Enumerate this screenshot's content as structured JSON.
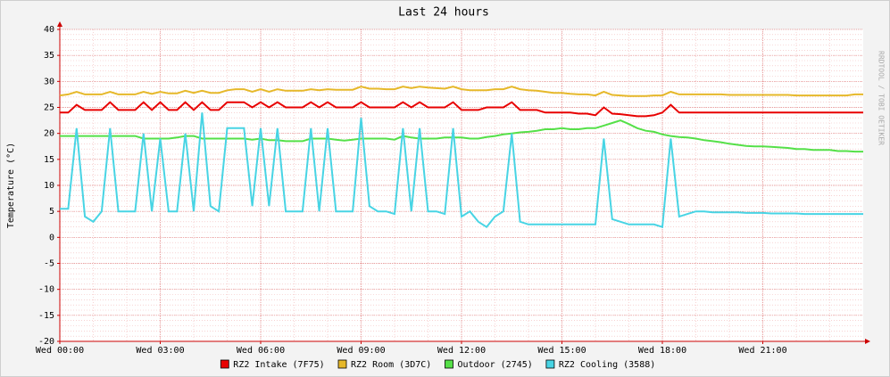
{
  "chart_data": {
    "type": "line",
    "title": "Last 24 hours",
    "ylabel": "Temperature (°C)",
    "watermark": "RRDTOOL / TOBI OETIKER",
    "x": [
      0,
      0.25,
      0.5,
      0.75,
      1,
      1.25,
      1.5,
      1.75,
      2,
      2.25,
      2.5,
      2.75,
      3,
      3.25,
      3.5,
      3.75,
      4,
      4.25,
      4.5,
      4.75,
      5,
      5.25,
      5.5,
      5.75,
      6,
      6.25,
      6.5,
      6.75,
      7,
      7.25,
      7.5,
      7.75,
      8,
      8.25,
      8.5,
      8.75,
      9,
      9.25,
      9.5,
      9.75,
      10,
      10.25,
      10.5,
      10.75,
      11,
      11.25,
      11.5,
      11.75,
      12,
      12.25,
      12.5,
      12.75,
      13,
      13.25,
      13.5,
      13.75,
      14,
      14.25,
      14.5,
      14.75,
      15,
      15.25,
      15.5,
      15.75,
      16,
      16.25,
      16.5,
      16.75,
      17,
      17.25,
      17.5,
      17.75,
      18,
      18.25,
      18.5,
      18.75,
      19,
      19.25,
      19.5,
      19.75,
      20,
      20.25,
      20.5,
      20.75,
      21,
      21.25,
      21.5,
      21.75,
      22,
      22.25,
      22.5,
      22.75,
      23,
      23.25,
      23.5,
      23.75,
      24
    ],
    "series": [
      {
        "name": "RZ2 Intake (7F75)",
        "color": "#e80000",
        "values": [
          24,
          24,
          25.5,
          24.5,
          24.5,
          24.5,
          26,
          24.5,
          24.5,
          24.5,
          26,
          24.5,
          26,
          24.5,
          24.5,
          26,
          24.5,
          26,
          24.5,
          24.5,
          26,
          26,
          26,
          25,
          26,
          25,
          26,
          25,
          25,
          25,
          26,
          25,
          26,
          25,
          25,
          25,
          26,
          25,
          25,
          25,
          25,
          26,
          25,
          26,
          25,
          25,
          25,
          26,
          24.5,
          24.5,
          24.5,
          25,
          25,
          25,
          26,
          24.5,
          24.5,
          24.5,
          24,
          24,
          24,
          24,
          23.8,
          23.8,
          23.5,
          25,
          23.8,
          23.7,
          23.5,
          23.3,
          23.3,
          23.5,
          24,
          25.5,
          24,
          24,
          24,
          24,
          24,
          24,
          24,
          24,
          24,
          24,
          24,
          24,
          24,
          24,
          24,
          24,
          24,
          24,
          24,
          24,
          24,
          24,
          24
        ]
      },
      {
        "name": "RZ2 Room (3D7C)",
        "color": "#e6b82a",
        "values": [
          27.3,
          27.5,
          28,
          27.5,
          27.5,
          27.5,
          28,
          27.5,
          27.5,
          27.5,
          28,
          27.6,
          28,
          27.7,
          27.7,
          28.2,
          27.8,
          28.2,
          27.8,
          27.8,
          28.3,
          28.5,
          28.5,
          28,
          28.5,
          28,
          28.5,
          28.2,
          28.2,
          28.2,
          28.5,
          28.3,
          28.5,
          28.4,
          28.4,
          28.4,
          29,
          28.6,
          28.6,
          28.5,
          28.5,
          29,
          28.7,
          29,
          28.8,
          28.7,
          28.6,
          29,
          28.5,
          28.3,
          28.3,
          28.3,
          28.5,
          28.5,
          29,
          28.5,
          28.3,
          28.2,
          28,
          27.8,
          27.8,
          27.6,
          27.5,
          27.5,
          27.3,
          28,
          27.4,
          27.3,
          27.2,
          27.2,
          27.2,
          27.3,
          27.3,
          28,
          27.5,
          27.5,
          27.5,
          27.5,
          27.5,
          27.5,
          27.4,
          27.4,
          27.4,
          27.4,
          27.4,
          27.4,
          27.4,
          27.4,
          27.3,
          27.3,
          27.3,
          27.3,
          27.3,
          27.3,
          27.3,
          27.5,
          27.5
        ]
      },
      {
        "name": "Outdoor (2745)",
        "color": "#55e048",
        "values": [
          19.5,
          19.5,
          19.5,
          19.5,
          19.5,
          19.5,
          19.5,
          19.5,
          19.5,
          19.5,
          19,
          19,
          19,
          19,
          19.2,
          19.5,
          19.5,
          19,
          19,
          19,
          19,
          19,
          19,
          18.8,
          19,
          18.7,
          18.7,
          18.5,
          18.5,
          18.5,
          19,
          19,
          19,
          18.8,
          18.6,
          18.8,
          19,
          19,
          19,
          19,
          18.8,
          19.5,
          19.2,
          19,
          19,
          19,
          19.2,
          19.2,
          19.2,
          19,
          19,
          19.3,
          19.5,
          19.8,
          20,
          20.2,
          20.3,
          20.5,
          20.8,
          20.8,
          21,
          20.8,
          20.8,
          21,
          21,
          21.5,
          22,
          22.5,
          21.8,
          21,
          20.5,
          20.3,
          19.8,
          19.5,
          19.3,
          19.2,
          19,
          18.7,
          18.5,
          18.3,
          18,
          17.8,
          17.6,
          17.5,
          17.5,
          17.4,
          17.3,
          17.2,
          17,
          17,
          16.8,
          16.8,
          16.8,
          16.6,
          16.6,
          16.5,
          16.5
        ]
      },
      {
        "name": "RZ2 Cooling (3588)",
        "color": "#48d4e4",
        "values": [
          5.5,
          5.5,
          21,
          4,
          3,
          5,
          21,
          5,
          5,
          5,
          20,
          5,
          19,
          5,
          5,
          20,
          5,
          24,
          6,
          5,
          21,
          21,
          21,
          6,
          21,
          6,
          21,
          5,
          5,
          5,
          21,
          5,
          21,
          5,
          5,
          5,
          23,
          6,
          5,
          5,
          4.5,
          21,
          5,
          21,
          5,
          5,
          4.5,
          21,
          4,
          5,
          3,
          2,
          4,
          5,
          20,
          3,
          2.5,
          2.5,
          2.5,
          2.5,
          2.5,
          2.5,
          2.5,
          2.5,
          2.5,
          19,
          3.5,
          3,
          2.5,
          2.5,
          2.5,
          2.5,
          2,
          19,
          4,
          4.5,
          5,
          5,
          4.8,
          4.8,
          4.8,
          4.8,
          4.7,
          4.7,
          4.7,
          4.6,
          4.6,
          4.6,
          4.6,
          4.5,
          4.5,
          4.5,
          4.5,
          4.5,
          4.5,
          4.5,
          4.5
        ]
      }
    ],
    "xlim": [
      0,
      24
    ],
    "xticks": [
      {
        "value": 0,
        "label": "Wed 00:00"
      },
      {
        "value": 3,
        "label": "Wed 03:00"
      },
      {
        "value": 6,
        "label": "Wed 06:00"
      },
      {
        "value": 9,
        "label": "Wed 09:00"
      },
      {
        "value": 12,
        "label": "Wed 12:00"
      },
      {
        "value": 15,
        "label": "Wed 15:00"
      },
      {
        "value": 18,
        "label": "Wed 18:00"
      },
      {
        "value": 21,
        "label": "Wed 21:00"
      }
    ],
    "ylim": [
      -20,
      40
    ],
    "yticks": [
      -20,
      -15,
      -10,
      -5,
      0,
      5,
      10,
      15,
      20,
      25,
      30,
      35,
      40
    ],
    "grid": true,
    "legend": "bottom"
  }
}
